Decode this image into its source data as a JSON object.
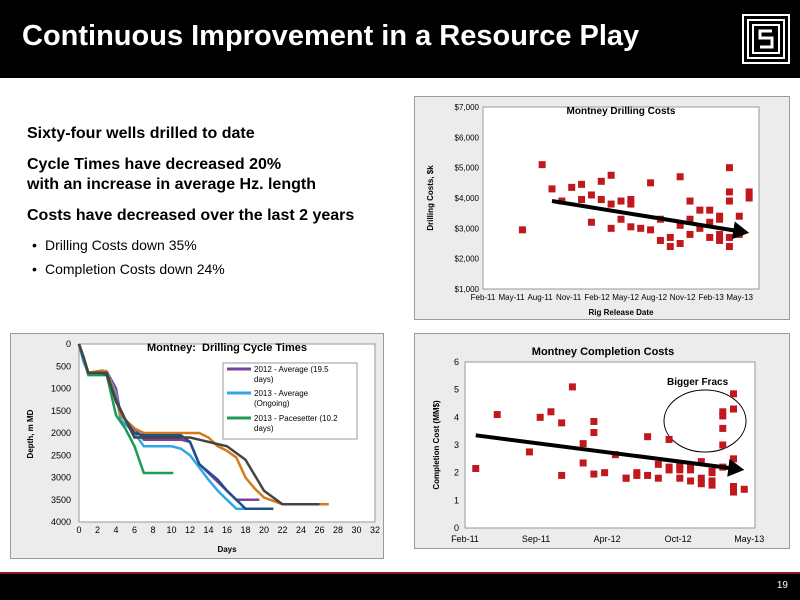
{
  "slide": {
    "title": "Continuous Improvement in a Resource Play",
    "page_number": "19",
    "logo": "company-logo-icon",
    "bullets": [
      {
        "text": "Sixty-four wells drilled to date"
      },
      {
        "text": "Cycle Times have decreased 20%",
        "text2": "with an increase in average Hz. length"
      },
      {
        "text": "Costs have decreased over the last 2 years"
      }
    ],
    "sub_bullets": [
      "Drilling Costs down 35%",
      "Completion Costs down 24%"
    ]
  },
  "chart_data": [
    {
      "type": "scatter",
      "title": "Montney Drilling Costs",
      "xlabel": "Rig Release Date",
      "ylabel": "Drilling Costs, $k",
      "x_tick_labels": [
        "Feb-11",
        "May-11",
        "Aug-11",
        "Nov-11",
        "Feb-12",
        "May-12",
        "Aug-12",
        "Nov-12",
        "Feb-13",
        "May-13"
      ],
      "y_tick_labels": [
        "$1,000",
        "$2,000",
        "$3,000",
        "$4,000",
        "$5,000",
        "$6,000",
        "$7,000"
      ],
      "ylim": [
        1000,
        7000
      ],
      "x_domain": [
        "2011-02",
        "2013-06"
      ],
      "grid": false,
      "marker_color": "#c0191d",
      "trend_arrow": {
        "from": [
          "2011-09",
          3900
        ],
        "to": [
          "2013-05",
          2850
        ]
      },
      "points": [
        [
          "2011-06",
          2950
        ],
        [
          "2011-08",
          5100
        ],
        [
          "2011-09",
          4300
        ],
        [
          "2011-10",
          3900
        ],
        [
          "2011-11",
          4350
        ],
        [
          "2011-12",
          3950
        ],
        [
          "2011-12",
          4450
        ],
        [
          "2012-01",
          3200
        ],
        [
          "2012-01",
          4100
        ],
        [
          "2012-02",
          3950
        ],
        [
          "2012-02",
          4550
        ],
        [
          "2012-03",
          3000
        ],
        [
          "2012-03",
          3800
        ],
        [
          "2012-03",
          4750
        ],
        [
          "2012-04",
          3900
        ],
        [
          "2012-04",
          3300
        ],
        [
          "2012-05",
          3950
        ],
        [
          "2012-05",
          3050
        ],
        [
          "2012-05",
          3800
        ],
        [
          "2012-06",
          3000
        ],
        [
          "2012-07",
          2950
        ],
        [
          "2012-07",
          4500
        ],
        [
          "2012-08",
          3300
        ],
        [
          "2012-08",
          2600
        ],
        [
          "2012-09",
          2400
        ],
        [
          "2012-09",
          2700
        ],
        [
          "2012-10",
          2500
        ],
        [
          "2012-10",
          4700
        ],
        [
          "2012-10",
          3100
        ],
        [
          "2012-11",
          2800
        ],
        [
          "2012-11",
          3300
        ],
        [
          "2012-11",
          3900
        ],
        [
          "2012-12",
          3600
        ],
        [
          "2012-12",
          3000
        ],
        [
          "2013-01",
          3600
        ],
        [
          "2013-01",
          3200
        ],
        [
          "2013-01",
          2700
        ],
        [
          "2013-02",
          3400
        ],
        [
          "2013-02",
          2800
        ],
        [
          "2013-02",
          2600
        ],
        [
          "2013-02",
          3300
        ],
        [
          "2013-03",
          3900
        ],
        [
          "2013-03",
          2700
        ],
        [
          "2013-03",
          2400
        ],
        [
          "2013-03",
          4200
        ],
        [
          "2013-03",
          5000
        ],
        [
          "2013-04",
          2800
        ],
        [
          "2013-04",
          3400
        ],
        [
          "2013-05",
          4200
        ],
        [
          "2013-05",
          4000
        ]
      ]
    },
    {
      "type": "line",
      "title": "Montney:  Drilling Cycle Times",
      "xlabel": "Days",
      "ylabel": "Depth, m MD",
      "x_ticks": [
        0,
        2,
        4,
        6,
        8,
        10,
        12,
        14,
        16,
        18,
        20,
        22,
        24,
        26,
        28,
        30,
        32
      ],
      "y_ticks": [
        0,
        500,
        1000,
        1500,
        2000,
        2500,
        3000,
        3500,
        4000
      ],
      "xlim": [
        0,
        32
      ],
      "ylim": [
        0,
        4000
      ],
      "y_inverted": true,
      "series": [
        {
          "name": "2012 - Average (19.5 days)",
          "color": "#7b3f9c",
          "points": [
            [
              0,
              0
            ],
            [
              0.5,
              400
            ],
            [
              1,
              650
            ],
            [
              2.5,
              600
            ],
            [
              3,
              620
            ],
            [
              4,
              1000
            ],
            [
              4.5,
              1600
            ],
            [
              6,
              1900
            ],
            [
              7,
              2150
            ],
            [
              11,
              2150
            ],
            [
              12,
              2200
            ],
            [
              13,
              2700
            ],
            [
              15,
              3100
            ],
            [
              16,
              3300
            ],
            [
              17,
              3500
            ],
            [
              19.5,
              3500
            ]
          ]
        },
        {
          "name": "2013 - Average (Ongoing)",
          "color": "#2fa8e0",
          "points": [
            [
              0,
              0
            ],
            [
              0.5,
              400
            ],
            [
              1,
              650
            ],
            [
              2.5,
              600
            ],
            [
              3,
              620
            ],
            [
              4,
              1100
            ],
            [
              4.5,
              1700
            ],
            [
              6,
              2000
            ],
            [
              7,
              2300
            ],
            [
              10,
              2300
            ],
            [
              11,
              2350
            ],
            [
              12,
              2500
            ],
            [
              14,
              3050
            ],
            [
              15,
              3300
            ],
            [
              16,
              3500
            ],
            [
              17,
              3700
            ],
            [
              21,
              3700
            ]
          ]
        },
        {
          "name": "2013 - Pacesetter (10.2 days)",
          "color": "#1e9c55",
          "points": [
            [
              0,
              0
            ],
            [
              0.5,
              300
            ],
            [
              1,
              700
            ],
            [
              3,
              700
            ],
            [
              4,
              1600
            ],
            [
              5,
              1900
            ],
            [
              6,
              2300
            ],
            [
              7,
              2900
            ],
            [
              10.2,
              2900
            ]
          ]
        },
        {
          "color": "#d47a1a",
          "points": [
            [
              0,
              0
            ],
            [
              0.5,
              300
            ],
            [
              1,
              650
            ],
            [
              2.5,
              600
            ],
            [
              3,
              620
            ],
            [
              4,
              1200
            ],
            [
              4.5,
              1600
            ],
            [
              6,
              1900
            ],
            [
              7,
              2000
            ],
            [
              13,
              2000
            ],
            [
              14,
              2100
            ],
            [
              15,
              2300
            ],
            [
              16,
              2400
            ],
            [
              17,
              2550
            ],
            [
              18,
              3000
            ],
            [
              19,
              3250
            ],
            [
              20,
              3450
            ],
            [
              22,
              3600
            ],
            [
              27,
              3600
            ]
          ]
        },
        {
          "color": "#1f4f8a",
          "points": [
            [
              0,
              0
            ],
            [
              0.5,
              300
            ],
            [
              1,
              650
            ],
            [
              2.5,
              650
            ],
            [
              3,
              700
            ],
            [
              4,
              1250
            ],
            [
              5,
              1700
            ],
            [
              6,
              2000
            ],
            [
              7,
              2050
            ],
            [
              8,
              2050
            ],
            [
              11,
              2050
            ],
            [
              12,
              2200
            ],
            [
              13,
              2700
            ],
            [
              15,
              3050
            ],
            [
              16,
              3300
            ],
            [
              18,
              3700
            ],
            [
              21,
              3700
            ]
          ]
        },
        {
          "color": "#444444",
          "points": [
            [
              0,
              0
            ],
            [
              0.5,
              300
            ],
            [
              1,
              650
            ],
            [
              2.5,
              650
            ],
            [
              3,
              650
            ],
            [
              4,
              1300
            ],
            [
              5,
              1700
            ],
            [
              6,
              2100
            ],
            [
              7,
              2100
            ],
            [
              11,
              2100
            ],
            [
              12,
              2100
            ],
            [
              13,
              2150
            ],
            [
              15,
              2250
            ],
            [
              16,
              2300
            ],
            [
              18,
              2600
            ],
            [
              20,
              3300
            ],
            [
              22,
              3600
            ],
            [
              26,
              3600
            ]
          ]
        }
      ]
    },
    {
      "type": "scatter",
      "title": "Montney Completion Costs",
      "xlabel": "",
      "ylabel": "Completion Cost (MM$)",
      "x_tick_labels": [
        "Feb-11",
        "Sep-11",
        "Apr-12",
        "Oct-12",
        "May-13"
      ],
      "y_ticks": [
        0,
        1,
        2,
        3,
        4,
        5,
        6
      ],
      "ylim": [
        0,
        6
      ],
      "x_domain": [
        "2011-02",
        "2013-05"
      ],
      "grid": false,
      "marker_color": "#c0191d",
      "annotation": "Bigger Fracs",
      "trend_arrow": {
        "from": [
          "2011-03",
          3.35
        ],
        "to": [
          "2013-04",
          2.1
        ]
      },
      "points": [
        [
          "2011-03",
          2.15
        ],
        [
          "2011-05",
          4.1
        ],
        [
          "2011-08",
          2.75
        ],
        [
          "2011-09",
          4.0
        ],
        [
          "2011-10",
          4.2
        ],
        [
          "2011-11",
          1.9
        ],
        [
          "2011-11",
          3.8
        ],
        [
          "2011-12",
          5.1
        ],
        [
          "2012-01",
          2.35
        ],
        [
          "2012-01",
          3.05
        ],
        [
          "2012-02",
          3.45
        ],
        [
          "2012-02",
          3.85
        ],
        [
          "2012-02",
          1.95
        ],
        [
          "2012-03",
          2.0
        ],
        [
          "2012-04",
          2.65
        ],
        [
          "2012-05",
          1.8
        ],
        [
          "2012-05",
          1.8
        ],
        [
          "2012-06",
          2.0
        ],
        [
          "2012-06",
          1.9
        ],
        [
          "2012-07",
          1.9
        ],
        [
          "2012-07",
          3.3
        ],
        [
          "2012-08",
          1.8
        ],
        [
          "2012-08",
          2.3
        ],
        [
          "2012-09",
          2.1
        ],
        [
          "2012-09",
          2.2
        ],
        [
          "2012-09",
          3.2
        ],
        [
          "2012-10",
          2.25
        ],
        [
          "2012-10",
          1.8
        ],
        [
          "2012-10",
          2.3
        ],
        [
          "2012-10",
          2.1
        ],
        [
          "2012-11",
          2.2
        ],
        [
          "2012-11",
          1.7
        ],
        [
          "2012-11",
          2.1
        ],
        [
          "2012-12",
          2.4
        ],
        [
          "2012-12",
          1.8
        ],
        [
          "2012-12",
          1.6
        ],
        [
          "2013-01",
          2.0
        ],
        [
          "2013-01",
          2.05
        ],
        [
          "2013-01",
          1.7
        ],
        [
          "2013-01",
          1.55
        ],
        [
          "2013-02",
          3.6
        ],
        [
          "2013-02",
          4.05
        ],
        [
          "2013-02",
          4.2
        ],
        [
          "2013-02",
          2.2
        ],
        [
          "2013-02",
          3.0
        ],
        [
          "2013-03",
          1.3
        ],
        [
          "2013-03",
          1.5
        ],
        [
          "2013-03",
          2.5
        ],
        [
          "2013-03",
          4.3
        ],
        [
          "2013-03",
          4.85
        ],
        [
          "2013-04",
          1.4
        ]
      ]
    }
  ]
}
